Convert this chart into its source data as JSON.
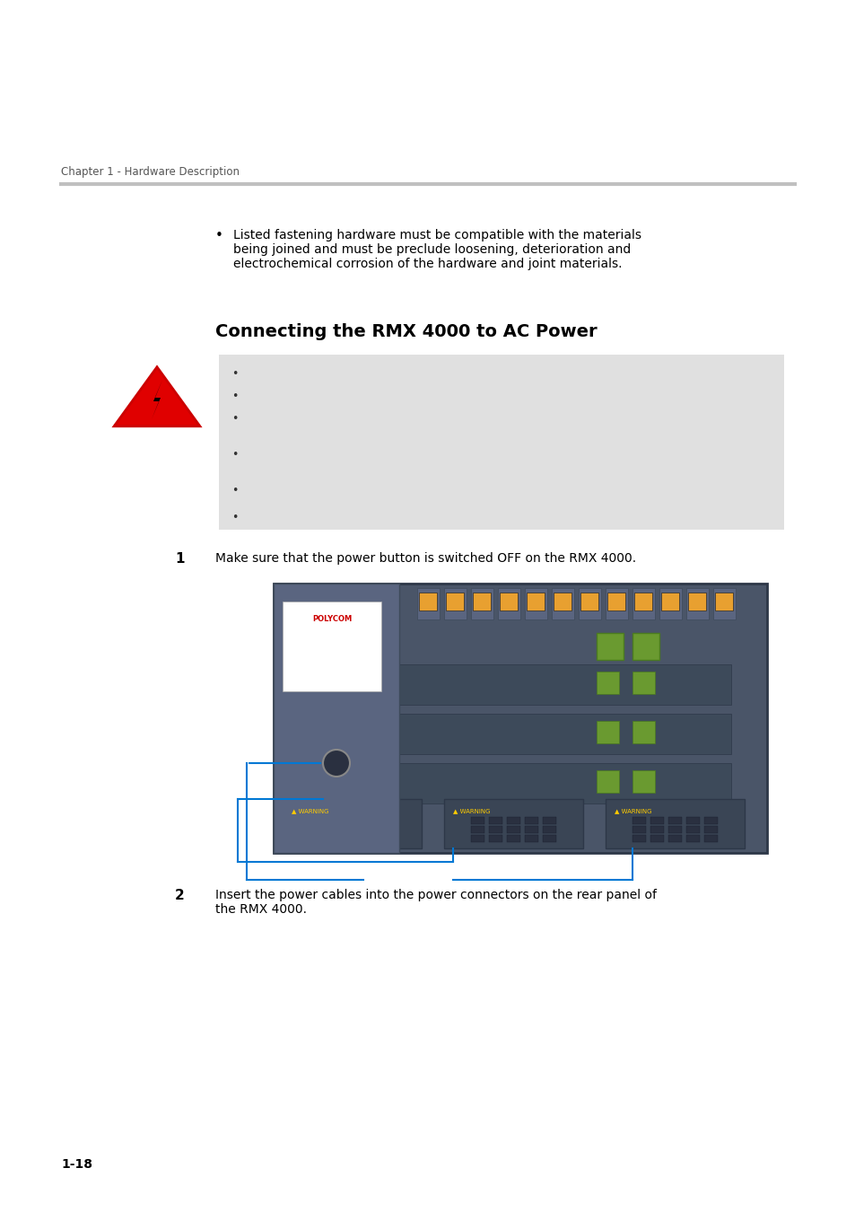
{
  "page_bg": "#ffffff",
  "chapter_header": "Chapter 1 - Hardware Description",
  "header_line_color": "#c0c0c0",
  "bullet_text": "Listed fastening hardware must be compatible with the materials\nbeing joined and must be preclude loosening, deterioration and\nelectrochemical corrosion of the hardware and joint materials.",
  "section_title": "Connecting the RMX 4000 to AC Power",
  "warning_box_color": "#e0e0e0",
  "step1_label": "1",
  "step1_text": "Make sure that the power button is switched OFF on the RMX 4000.",
  "step2_label": "2",
  "step2_text": "Insert the power cables into the power connectors on the rear panel of\nthe RMX 4000.",
  "page_number": "1-18",
  "text_color": "#000000",
  "title_color": "#000000"
}
